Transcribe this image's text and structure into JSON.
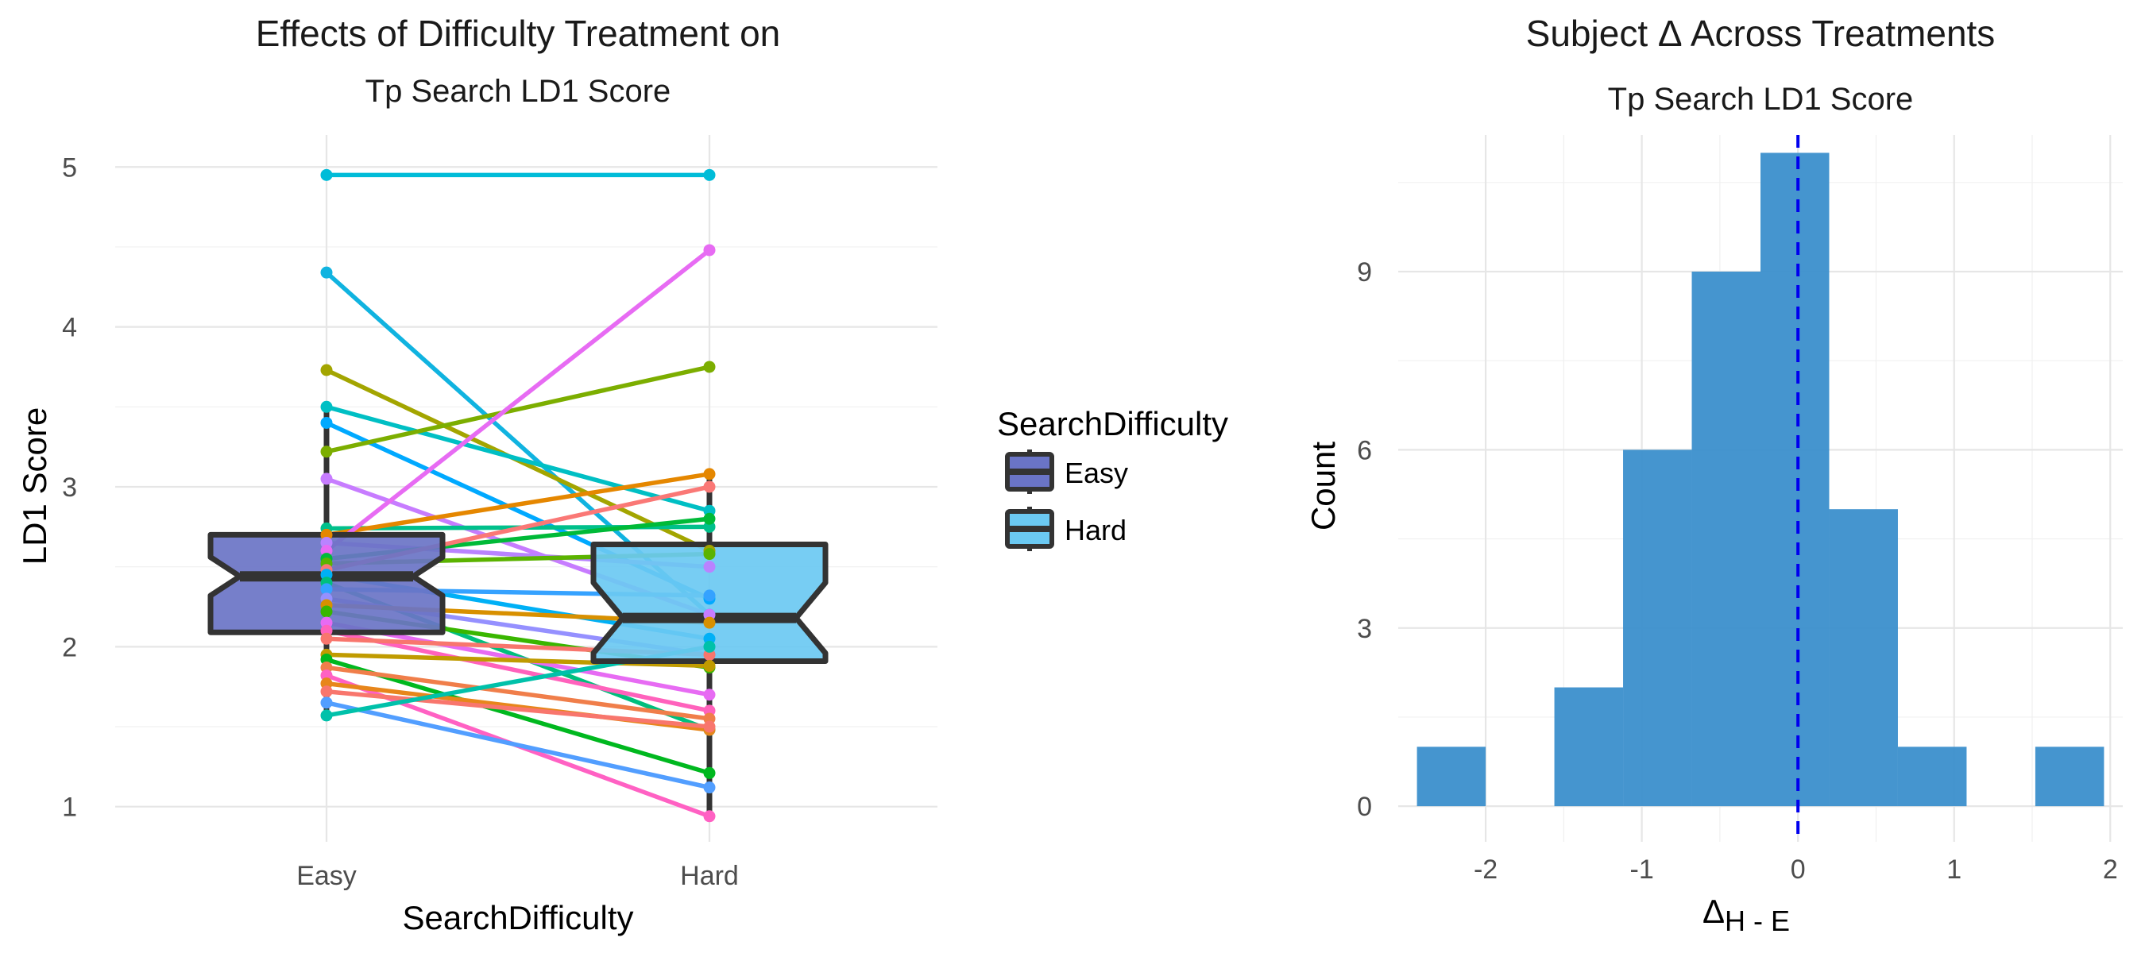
{
  "chart_data": [
    {
      "type": "boxplot",
      "title": "Effects of Difficulty Treatment on",
      "subtitle": "Tp Search LD1 Score",
      "xlabel": "SearchDifficulty",
      "ylabel": "LD1 Score",
      "categories": [
        "Easy",
        "Hard"
      ],
      "ylim": [
        0.78,
        5.2
      ],
      "yticks": [
        "1",
        "2",
        "3",
        "4",
        "5"
      ],
      "legend": {
        "title": "SearchDifficulty",
        "position": "right",
        "items": [
          {
            "label": "Easy",
            "color": "#6A74C6"
          },
          {
            "label": "Hard",
            "color": "#6BC9F2"
          }
        ]
      },
      "boxes": [
        {
          "category": "Easy",
          "min": 1.57,
          "q1": 2.09,
          "median": 2.44,
          "q3": 2.7,
          "max": 3.5,
          "notch_low": 2.32,
          "notch_high": 2.56,
          "color": "#6A74C6"
        },
        {
          "category": "Hard",
          "min": 0.94,
          "q1": 1.91,
          "median": 2.18,
          "q3": 2.64,
          "max": 3.05,
          "notch_low": 1.96,
          "notch_high": 2.4,
          "color": "#6BC9F2"
        }
      ],
      "subjects": [
        {
          "easy": 4.95,
          "hard": 4.95,
          "color": "#00BCD8"
        },
        {
          "easy": 4.34,
          "hard": 2.2,
          "color": "#10B3E0"
        },
        {
          "easy": 3.73,
          "hard": 2.6,
          "color": "#A3A500"
        },
        {
          "easy": 3.5,
          "hard": 2.85,
          "color": "#00BFC4"
        },
        {
          "easy": 3.4,
          "hard": 2.3,
          "color": "#00A9FF"
        },
        {
          "easy": 3.22,
          "hard": 3.75,
          "color": "#7CAE00"
        },
        {
          "easy": 3.05,
          "hard": 2.2,
          "color": "#C77CFF"
        },
        {
          "easy": 2.74,
          "hard": 2.75,
          "color": "#00C08B"
        },
        {
          "easy": 2.7,
          "hard": 3.08,
          "color": "#E58700"
        },
        {
          "easy": 2.65,
          "hard": 2.5,
          "color": "#B983FF"
        },
        {
          "easy": 2.6,
          "hard": 4.48,
          "color": "#E76BF3"
        },
        {
          "easy": 2.55,
          "hard": 2.8,
          "color": "#00BA38"
        },
        {
          "easy": 2.52,
          "hard": 2.58,
          "color": "#5BB300"
        },
        {
          "easy": 2.48,
          "hard": 3.0,
          "color": "#FA7876"
        },
        {
          "easy": 2.45,
          "hard": 2.05,
          "color": "#00B0F6"
        },
        {
          "easy": 2.4,
          "hard": 1.48,
          "color": "#00BF7D"
        },
        {
          "easy": 2.36,
          "hard": 2.32,
          "color": "#35A2FF"
        },
        {
          "easy": 2.3,
          "hard": 1.95,
          "color": "#9590FF"
        },
        {
          "easy": 2.26,
          "hard": 2.15,
          "color": "#D89000"
        },
        {
          "easy": 2.22,
          "hard": 1.87,
          "color": "#39B600"
        },
        {
          "easy": 2.15,
          "hard": 1.7,
          "color": "#E76BF3"
        },
        {
          "easy": 2.1,
          "hard": 1.6,
          "color": "#FF62BC"
        },
        {
          "easy": 2.05,
          "hard": 1.95,
          "color": "#F8766D"
        },
        {
          "easy": 1.95,
          "hard": 1.88,
          "color": "#C09B00"
        },
        {
          "easy": 1.92,
          "hard": 1.21,
          "color": "#00B81F"
        },
        {
          "easy": 1.87,
          "hard": 1.55,
          "color": "#F07E4A"
        },
        {
          "easy": 1.82,
          "hard": 0.94,
          "color": "#FF61C3"
        },
        {
          "easy": 1.77,
          "hard": 1.48,
          "color": "#E7861B"
        },
        {
          "easy": 1.72,
          "hard": 1.5,
          "color": "#F8766D"
        },
        {
          "easy": 1.65,
          "hard": 1.12,
          "color": "#529EFF"
        },
        {
          "easy": 1.57,
          "hard": 2.0,
          "color": "#00C1AA"
        }
      ]
    },
    {
      "type": "histogram",
      "title": "Subject Δ Across Treatments",
      "subtitle": "Tp Search LD1 Score",
      "xlabel_main": "Δ",
      "xlabel_sub": "H - E",
      "ylabel": "Count",
      "xlim": [
        -2.56,
        2.08
      ],
      "ylim": [
        -0.6,
        11.3
      ],
      "xticks": [
        "-2",
        "-1",
        "0",
        "1",
        "2"
      ],
      "yticks": [
        "0",
        "3",
        "6",
        "9"
      ],
      "bin_width": 0.44,
      "bins": [
        {
          "x0": -2.44,
          "x1": -2.0,
          "count": 1
        },
        {
          "x0": -2.0,
          "x1": -1.56,
          "count": 0
        },
        {
          "x0": -1.56,
          "x1": -1.12,
          "count": 2
        },
        {
          "x0": -1.12,
          "x1": -0.68,
          "count": 6
        },
        {
          "x0": -0.68,
          "x1": -0.24,
          "count": 9
        },
        {
          "x0": -0.24,
          "x1": 0.2,
          "count": 11
        },
        {
          "x0": 0.2,
          "x1": 0.64,
          "count": 5
        },
        {
          "x0": 0.64,
          "x1": 1.08,
          "count": 1
        },
        {
          "x0": 1.08,
          "x1": 1.52,
          "count": 0
        },
        {
          "x0": 1.52,
          "x1": 1.96,
          "count": 1
        }
      ],
      "bar_color": "#3B8FCC",
      "reference_line": {
        "x": 0,
        "color": "#0000EE",
        "style": "dashed"
      }
    }
  ]
}
